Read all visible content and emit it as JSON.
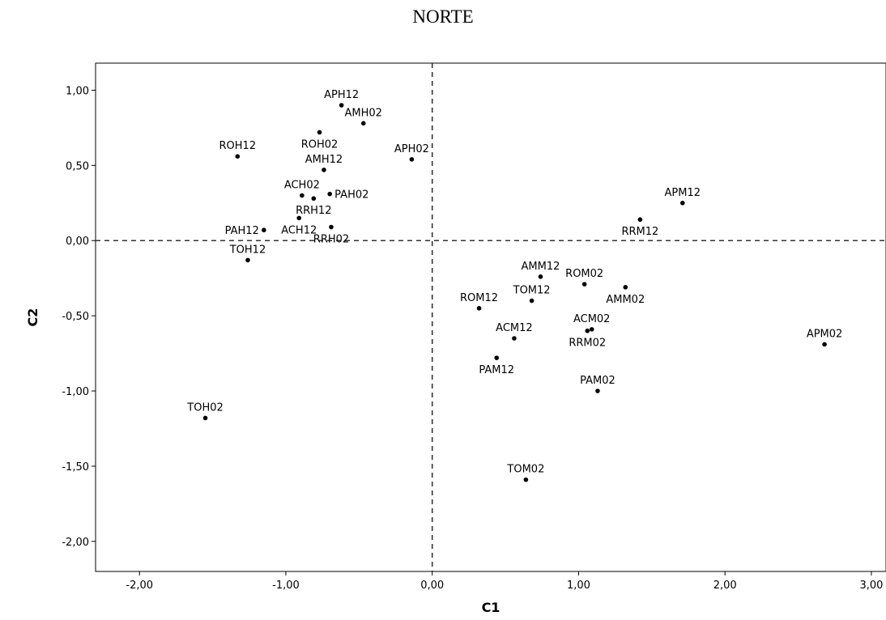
{
  "chart_data": {
    "type": "scatter",
    "title": "NORTE",
    "xlabel": "C1",
    "ylabel": "C2",
    "xlim": [
      -2.3,
      3.1
    ],
    "ylim": [
      -2.2,
      1.18
    ],
    "xticks": [
      -2.0,
      -1.0,
      0.0,
      1.0,
      2.0,
      3.0
    ],
    "xtick_labels": [
      "-2,00",
      "-1,00",
      "0,00",
      "1,00",
      "2,00",
      "3,00"
    ],
    "yticks": [
      1.0,
      0.5,
      0.0,
      -0.5,
      -1.0,
      -1.5,
      -2.0
    ],
    "ytick_labels": [
      "1,00",
      "0,50",
      "0,00",
      "-0,50",
      "-1,00",
      "-1,50",
      "-2,00"
    ],
    "reference_lines": {
      "x": 0.0,
      "y": 0.0,
      "style": "dashed"
    },
    "grid": false,
    "legend": "none",
    "points": [
      {
        "label": "APH12",
        "x": -0.62,
        "y": 0.9,
        "label_pos": "above"
      },
      {
        "label": "AMH02",
        "x": -0.47,
        "y": 0.78,
        "label_pos": "above"
      },
      {
        "label": "ROH02",
        "x": -0.77,
        "y": 0.72,
        "label_pos": "below"
      },
      {
        "label": "ROH12",
        "x": -1.33,
        "y": 0.56,
        "label_pos": "above"
      },
      {
        "label": "APH02",
        "x": -0.14,
        "y": 0.54,
        "label_pos": "above"
      },
      {
        "label": "AMH12",
        "x": -0.74,
        "y": 0.47,
        "label_pos": "above"
      },
      {
        "label": "ACH02",
        "x": -0.89,
        "y": 0.3,
        "label_pos": "above"
      },
      {
        "label": "PAH02",
        "x": -0.7,
        "y": 0.31,
        "label_pos": "right"
      },
      {
        "label": "RRH12",
        "x": -0.81,
        "y": 0.28,
        "label_pos": "below"
      },
      {
        "label": "ACH12",
        "x": -0.91,
        "y": 0.15,
        "label_pos": "below"
      },
      {
        "label": "PAH12",
        "x": -1.15,
        "y": 0.07,
        "label_pos": "left"
      },
      {
        "label": "RRH02",
        "x": -0.69,
        "y": 0.09,
        "label_pos": "below"
      },
      {
        "label": "TOH12",
        "x": -1.26,
        "y": -0.13,
        "label_pos": "above"
      },
      {
        "label": "TOH02",
        "x": -1.55,
        "y": -1.18,
        "label_pos": "above"
      },
      {
        "label": "APM12",
        "x": 1.71,
        "y": 0.25,
        "label_pos": "above"
      },
      {
        "label": "RRM12",
        "x": 1.42,
        "y": 0.14,
        "label_pos": "below"
      },
      {
        "label": "AMM12",
        "x": 0.74,
        "y": -0.24,
        "label_pos": "above"
      },
      {
        "label": "ROM02",
        "x": 1.04,
        "y": -0.29,
        "label_pos": "above"
      },
      {
        "label": "AMM02",
        "x": 1.32,
        "y": -0.31,
        "label_pos": "below"
      },
      {
        "label": "TOM12",
        "x": 0.68,
        "y": -0.4,
        "label_pos": "above"
      },
      {
        "label": "ROM12",
        "x": 0.32,
        "y": -0.45,
        "label_pos": "above"
      },
      {
        "label": "ACM02",
        "x": 1.09,
        "y": -0.59,
        "label_pos": "above"
      },
      {
        "label": "RRM02",
        "x": 1.06,
        "y": -0.6,
        "label_pos": "below"
      },
      {
        "label": "ACM12",
        "x": 0.56,
        "y": -0.65,
        "label_pos": "above"
      },
      {
        "label": "APM02",
        "x": 2.68,
        "y": -0.69,
        "label_pos": "above"
      },
      {
        "label": "PAM12",
        "x": 0.44,
        "y": -0.78,
        "label_pos": "below"
      },
      {
        "label": "PAM02",
        "x": 1.13,
        "y": -1.0,
        "label_pos": "above"
      },
      {
        "label": "TOM02",
        "x": 0.64,
        "y": -1.59,
        "label_pos": "above"
      }
    ]
  }
}
